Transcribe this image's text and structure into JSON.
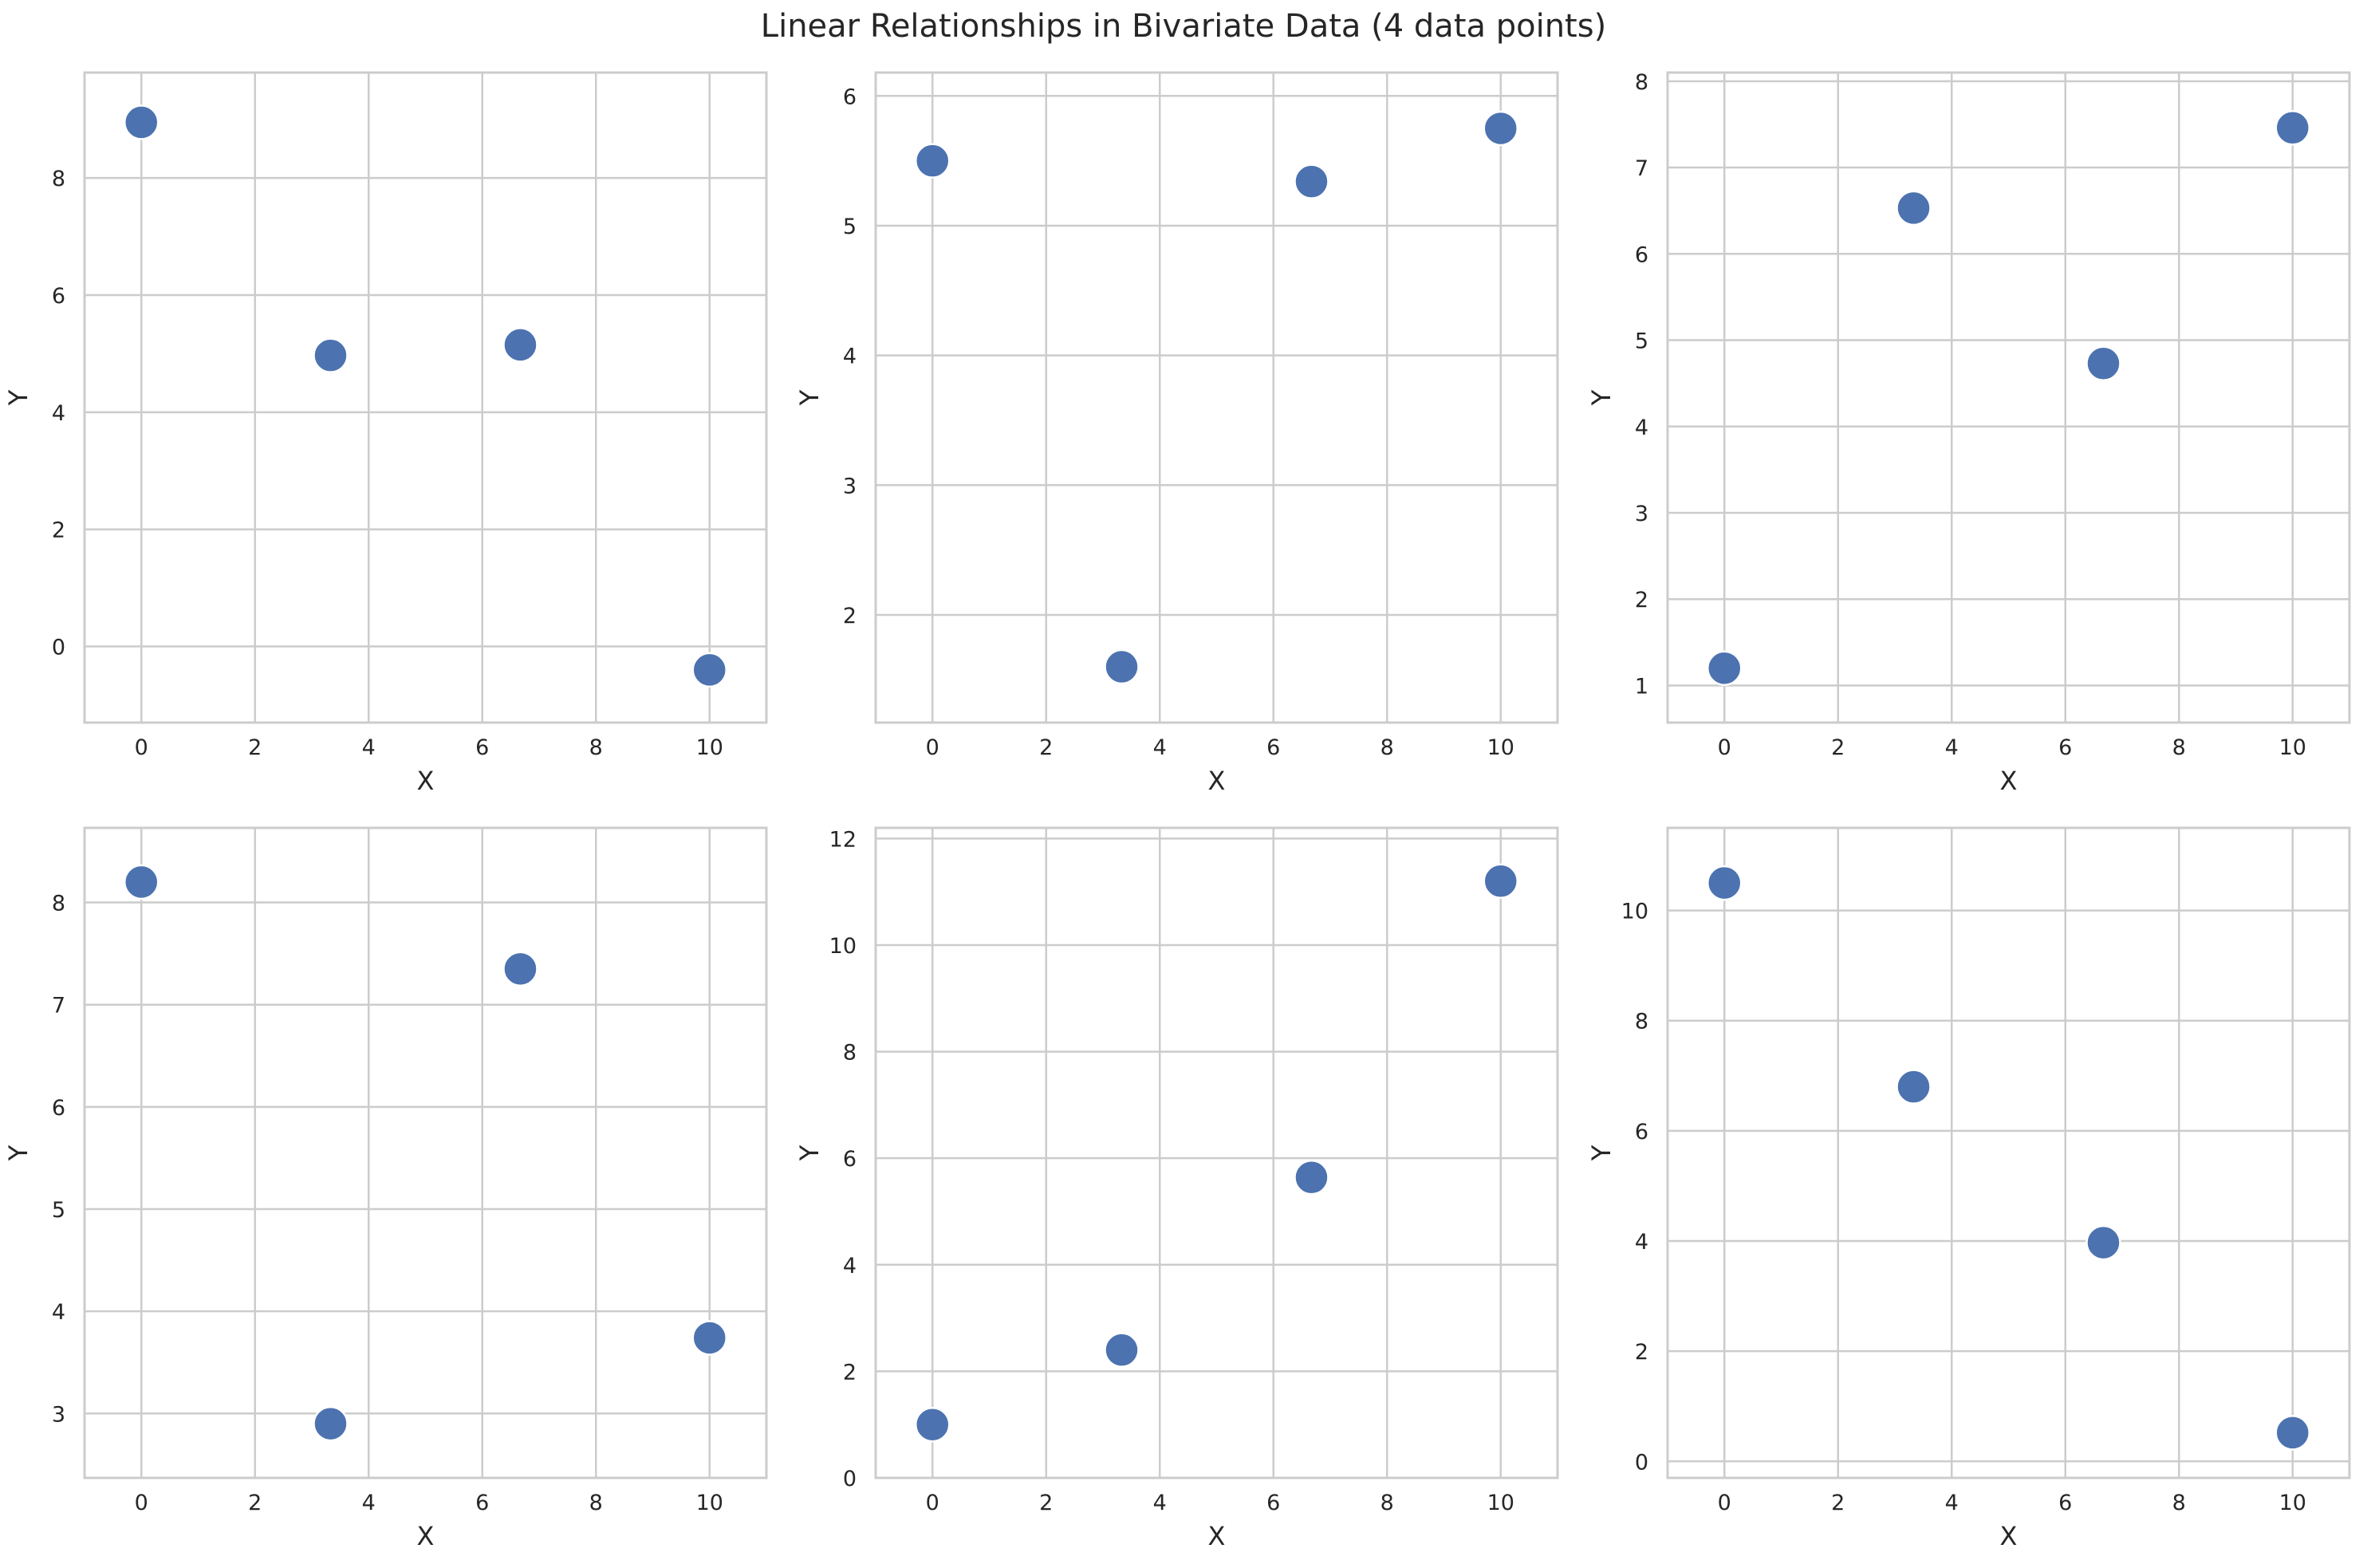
{
  "title": "Linear Relationships in Bivariate Data (4 data points)",
  "colors": {
    "marker": "#4c72b0",
    "marker_edge": "#ffffff",
    "grid": "#cccccc",
    "spine": "#cccccc",
    "text": "#262626"
  },
  "chart_data": [
    {
      "type": "scatter",
      "xlabel": "X",
      "ylabel": "Y",
      "xlim": [
        -1,
        11
      ],
      "ylim": [
        -1.3,
        9.8
      ],
      "xticks": [
        0,
        2,
        4,
        6,
        8,
        10
      ],
      "yticks": [
        0,
        2,
        4,
        6,
        8
      ],
      "grid": true,
      "x": [
        0,
        3.33,
        6.67,
        10
      ],
      "y": [
        8.95,
        4.97,
        5.15,
        -0.4
      ]
    },
    {
      "type": "scatter",
      "xlabel": "X",
      "ylabel": "Y",
      "xlim": [
        -1,
        11
      ],
      "ylim": [
        1.17,
        6.18
      ],
      "xticks": [
        0,
        2,
        4,
        6,
        8,
        10
      ],
      "yticks": [
        2,
        3,
        4,
        5,
        6
      ],
      "grid": true,
      "x": [
        0,
        3.33,
        6.67,
        10
      ],
      "y": [
        5.5,
        1.6,
        5.34,
        5.75
      ]
    },
    {
      "type": "scatter",
      "xlabel": "X",
      "ylabel": "Y",
      "xlim": [
        -1,
        11
      ],
      "ylim": [
        0.57,
        8.1
      ],
      "xticks": [
        0,
        2,
        4,
        6,
        8,
        10
      ],
      "yticks": [
        1,
        2,
        3,
        4,
        5,
        6,
        7,
        8
      ],
      "grid": true,
      "x": [
        0,
        3.33,
        6.67,
        10
      ],
      "y": [
        1.2,
        6.53,
        4.73,
        7.46
      ]
    },
    {
      "type": "scatter",
      "xlabel": "X",
      "ylabel": "Y",
      "xlim": [
        -1,
        11
      ],
      "ylim": [
        2.37,
        8.73
      ],
      "xticks": [
        0,
        2,
        4,
        6,
        8,
        10
      ],
      "yticks": [
        3,
        4,
        5,
        6,
        7,
        8
      ],
      "grid": true,
      "x": [
        0,
        3.33,
        6.67,
        10
      ],
      "y": [
        8.2,
        2.9,
        7.35,
        3.74
      ]
    },
    {
      "type": "scatter",
      "xlabel": "X",
      "ylabel": "Y",
      "xlim": [
        -1,
        11
      ],
      "ylim": [
        0,
        12.2
      ],
      "xticks": [
        0,
        2,
        4,
        6,
        8,
        10
      ],
      "yticks": [
        0,
        2,
        4,
        6,
        8,
        10,
        12
      ],
      "grid": true,
      "x": [
        0,
        3.33,
        6.67,
        10
      ],
      "y": [
        1.0,
        2.4,
        5.64,
        11.2
      ]
    },
    {
      "type": "scatter",
      "xlabel": "X",
      "ylabel": "Y",
      "xlim": [
        -1,
        11
      ],
      "ylim": [
        -0.3,
        11.5
      ],
      "xticks": [
        0,
        2,
        4,
        6,
        8,
        10
      ],
      "yticks": [
        0,
        2,
        4,
        6,
        8,
        10
      ],
      "grid": true,
      "x": [
        0,
        3.33,
        6.67,
        10
      ],
      "y": [
        10.5,
        6.8,
        3.97,
        0.52
      ]
    }
  ]
}
